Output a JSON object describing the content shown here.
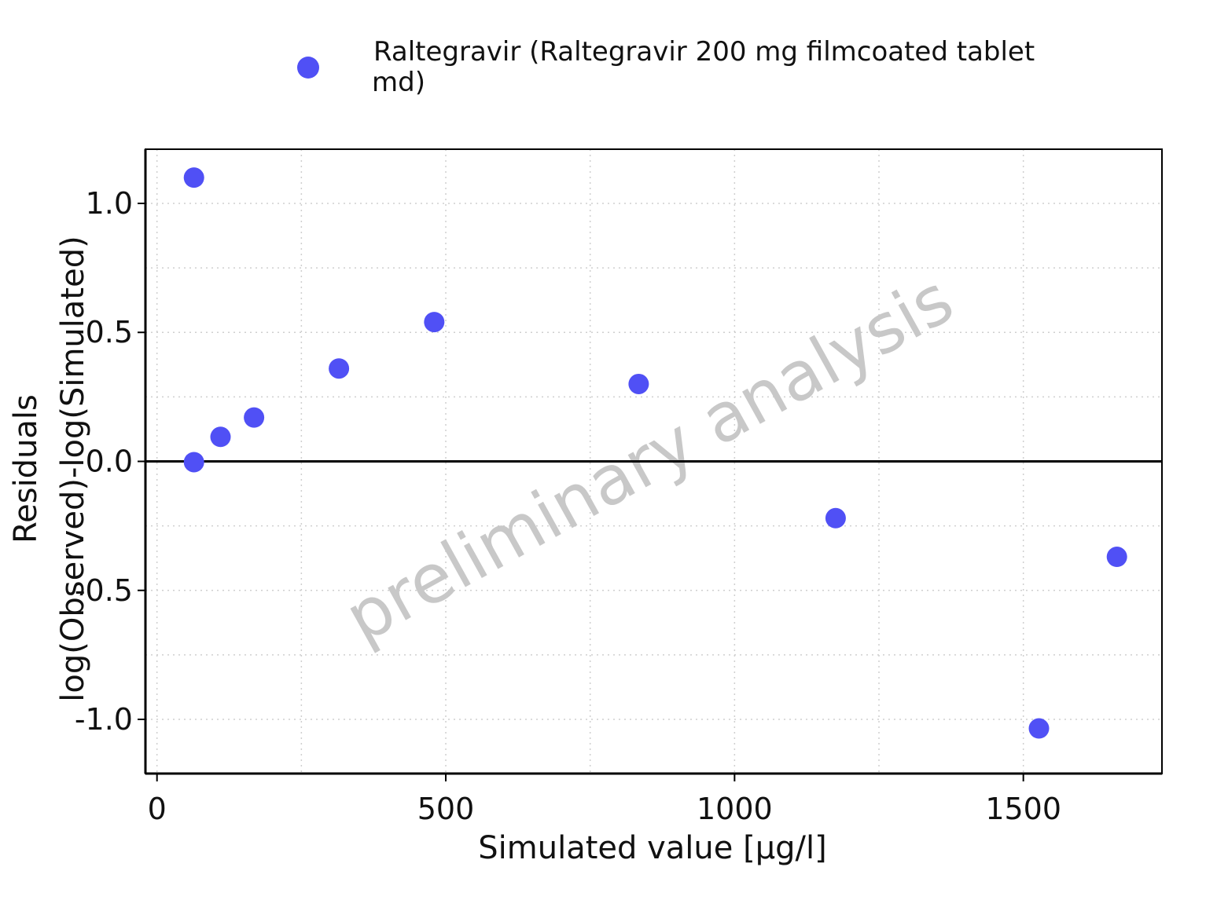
{
  "chart_data": {
    "type": "scatter",
    "title": "",
    "xlabel": "Simulated value [µg/l]",
    "ylabel_lines": [
      "Residuals",
      "log(Observed)-log(Simulated)"
    ],
    "xlim": [
      -20,
      1740
    ],
    "ylim": [
      -1.21,
      1.21
    ],
    "x_ticks": [
      0,
      500,
      1000,
      1500
    ],
    "x_tick_labels": [
      "0",
      "500",
      "1000",
      "1500"
    ],
    "y_ticks": [
      -1.0,
      -0.5,
      0.0,
      0.5,
      1.0
    ],
    "y_tick_labels": [
      "-1.0",
      "-0.5",
      "0.0",
      "0.5",
      "1.0"
    ],
    "grid": true,
    "reference_line_y": 0.0,
    "legend_position": "top",
    "watermark": "preliminary analysis",
    "colors": {
      "series": "#5050f5",
      "axis": "#000000",
      "grid": "#cfcfcf",
      "watermark": "#c8c8c8"
    },
    "series": [
      {
        "name_lines": [
          "Raltegravir (Raltegravir 200 mg filmcoated tablet",
          "md)"
        ],
        "points": [
          {
            "x": 64,
            "y": 1.1
          },
          {
            "x": 64,
            "y": -0.003
          },
          {
            "x": 110,
            "y": 0.095
          },
          {
            "x": 168,
            "y": 0.17
          },
          {
            "x": 315,
            "y": 0.36
          },
          {
            "x": 480,
            "y": 0.54
          },
          {
            "x": 834,
            "y": 0.3
          },
          {
            "x": 1175,
            "y": -0.22
          },
          {
            "x": 1527,
            "y": -1.035
          },
          {
            "x": 1662,
            "y": -0.37
          }
        ]
      }
    ]
  }
}
